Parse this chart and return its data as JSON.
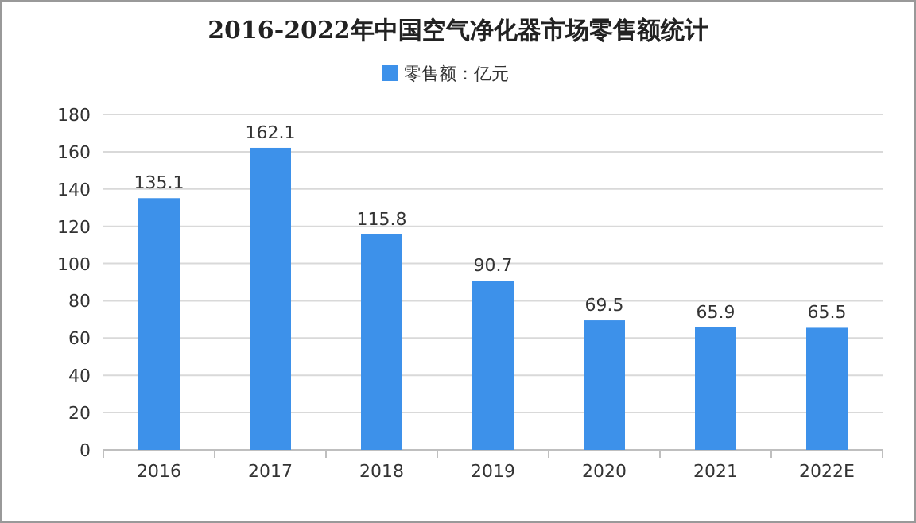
{
  "chart_data": {
    "type": "bar",
    "title": "2016-2022年中国空气净化器市场零售额统计",
    "categories": [
      "2016",
      "2017",
      "2018",
      "2019",
      "2020",
      "2021",
      "2022E"
    ],
    "series": [
      {
        "name": "零售额：亿元",
        "color": "#3d91ea",
        "values": [
          135.1,
          162.1,
          115.8,
          90.7,
          69.5,
          65.9,
          65.5
        ]
      }
    ],
    "ylim": [
      0,
      180
    ],
    "yticks": [
      0,
      20,
      40,
      60,
      80,
      100,
      120,
      140,
      160,
      180
    ],
    "grid": "y",
    "legend": "top",
    "data_labels": true
  }
}
